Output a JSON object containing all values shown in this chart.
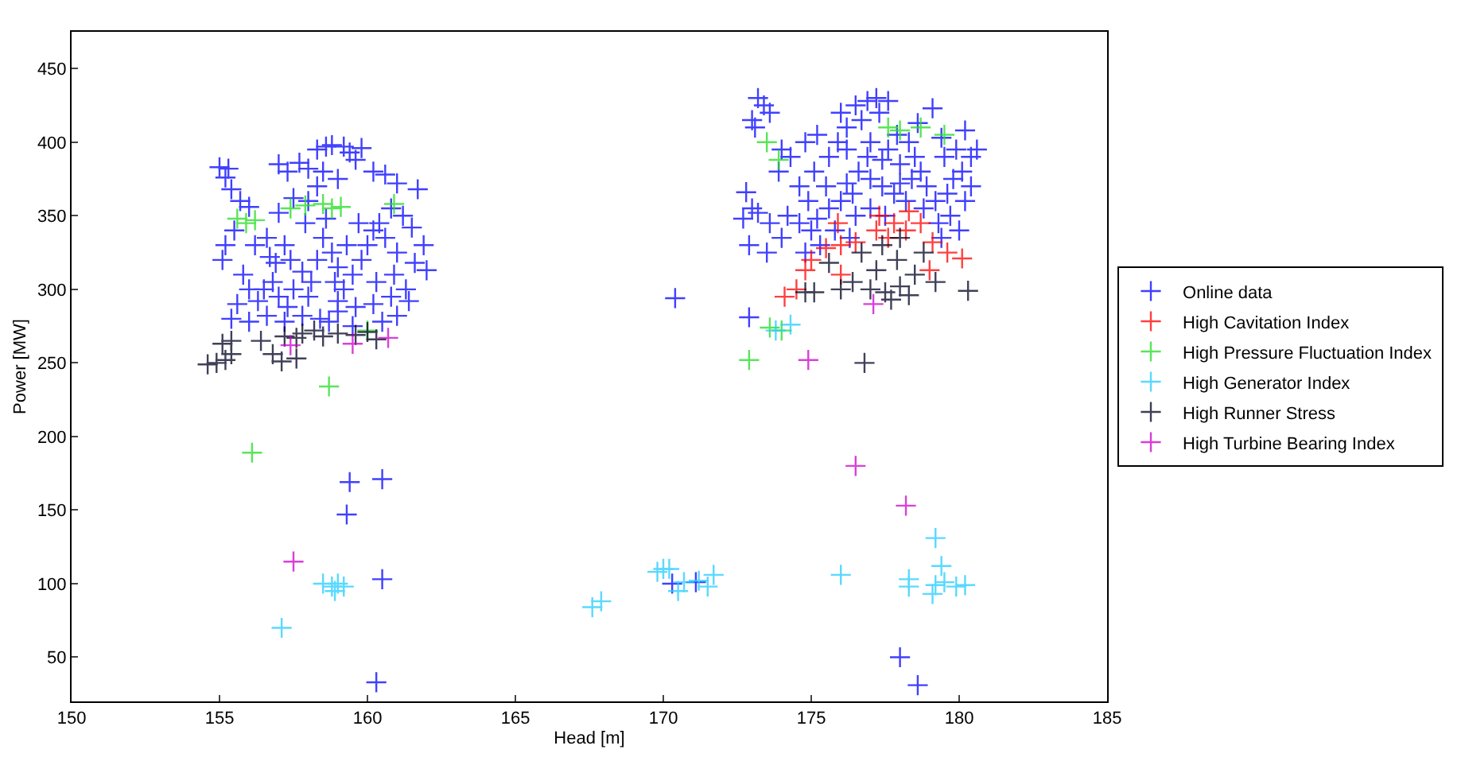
{
  "chart_data": {
    "type": "scatter",
    "xlabel": "Head [m]",
    "ylabel": "Power [MW]",
    "xlim": [
      150,
      185
    ],
    "ylim": [
      20,
      475
    ],
    "xticks": [
      150,
      155,
      160,
      165,
      170,
      175,
      180,
      185
    ],
    "yticks": [
      50,
      100,
      150,
      200,
      250,
      300,
      350,
      400,
      450
    ],
    "legend": "right",
    "marker": "cross",
    "series": [
      {
        "name": "Online data",
        "color": "#0000ff",
        "x": [
          155.0,
          155.3,
          155.2,
          155.4,
          155.7,
          156.0,
          155.5,
          155.2,
          155.1,
          156.2,
          156.6,
          156.7,
          157.2,
          157.0,
          157.3,
          157.7,
          158.0,
          158.3,
          158.6,
          158.8,
          159.2,
          159.4,
          159.8,
          159.6,
          158.5,
          159.0,
          158.3,
          158.0,
          157.5,
          157.0,
          160.2,
          160.6,
          161.0,
          161.7,
          160.8,
          161.5,
          161.9,
          162.0,
          161.6,
          161.3,
          161.0,
          160.6,
          160.2,
          160.0,
          159.8,
          159.5,
          159.2,
          159.0,
          158.8,
          158.5,
          158.3,
          158.1,
          158.0,
          157.8,
          157.5,
          157.3,
          157.0,
          156.8,
          156.5,
          156.3,
          156.0,
          155.8,
          155.6,
          155.4,
          156.0,
          156.6,
          157.2,
          157.8,
          158.4,
          159.0,
          159.6,
          160.2,
          160.8,
          161.4,
          161.0,
          160.5,
          159.5,
          158.7,
          159.3,
          159.7,
          160.4,
          161.2,
          157.9,
          158.6,
          156.9,
          157.4,
          158.9,
          160.3,
          160.9,
          159.0,
          172.7,
          173.0,
          172.8,
          173.2,
          173.0,
          173.2,
          173.4,
          173.6,
          173.1,
          174.0,
          174.3,
          173.9,
          174.6,
          174.2,
          174.6,
          175.0,
          174.0,
          173.6,
          175.2,
          175.6,
          175.5,
          175.1,
          175.6,
          176.2,
          174.8,
          175.2,
          176.0,
          176.5,
          176.9,
          177.2,
          177.6,
          177.3,
          176.7,
          176.2,
          177.0,
          177.6,
          177.9,
          178.3,
          178.5,
          178.7,
          178.9,
          179.2,
          179.6,
          179.8,
          180.1,
          180.4,
          179.9,
          179.5,
          179.1,
          178.6,
          179.4,
          180.2,
          180.6,
          180.4,
          180.2,
          179.7,
          179.3,
          178.8,
          178.2,
          177.8,
          177.4,
          177.0,
          176.6,
          176.2,
          176.0,
          176.5,
          177.0,
          177.5,
          178.0,
          178.4,
          178.0,
          177.4,
          176.9,
          176.4,
          175.8,
          176.3,
          175.3,
          174.8,
          179.4,
          180.0,
          172.9,
          173.5,
          174.9,
          175.9,
          170.4,
          172.9,
          160.3,
          160.5,
          159.4,
          160.5,
          159.3,
          178.0,
          178.6,
          170.3,
          171.1
        ],
        "values": [
          383,
          382,
          376,
          368,
          360,
          356,
          340,
          330,
          320,
          330,
          335,
          322,
          330,
          385,
          380,
          386,
          382,
          395,
          397,
          398,
          397,
          393,
          396,
          388,
          380,
          375,
          370,
          360,
          362,
          352,
          380,
          378,
          372,
          368,
          355,
          342,
          330,
          313,
          318,
          300,
          325,
          335,
          340,
          330,
          320,
          310,
          300,
          315,
          325,
          335,
          320,
          305,
          295,
          312,
          300,
          288,
          295,
          305,
          300,
          292,
          300,
          310,
          290,
          280,
          278,
          282,
          278,
          282,
          280,
          285,
          288,
          290,
          295,
          292,
          282,
          278,
          275,
          278,
          330,
          345,
          345,
          350,
          345,
          348,
          318,
          320,
          305,
          305,
          310,
          292,
          348,
          355,
          366,
          352,
          415,
          430,
          425,
          420,
          410,
          395,
          390,
          380,
          370,
          350,
          345,
          340,
          335,
          345,
          348,
          355,
          370,
          380,
          390,
          395,
          400,
          405,
          420,
          425,
          428,
          430,
          428,
          420,
          415,
          410,
          400,
          395,
          405,
          400,
          390,
          380,
          370,
          360,
          365,
          375,
          380,
          390,
          395,
          390,
          423,
          413,
          403,
          408,
          395,
          370,
          360,
          350,
          345,
          355,
          360,
          365,
          370,
          375,
          380,
          372,
          360,
          350,
          355,
          350,
          372,
          375,
          385,
          388,
          390,
          365,
          340,
          335,
          330,
          325,
          335,
          340,
          330,
          325,
          360,
          400,
          294,
          281,
          33,
          103,
          169,
          171,
          147,
          50,
          31,
          100,
          101
        ]
      },
      {
        "name": "High Cavitation Index",
        "color": "#ff0000",
        "x": [
          177.3,
          177.8,
          178.3,
          178.7,
          177.6,
          176.5,
          175.5,
          175.0,
          174.8,
          174.5,
          174.1,
          176.0,
          179.1,
          179.6,
          180.1,
          179.0,
          175.9,
          178.2,
          177.2,
          176.0
        ],
        "values": [
          350,
          345,
          353,
          345,
          335,
          332,
          328,
          320,
          313,
          300,
          295,
          330,
          332,
          325,
          321,
          313,
          345,
          340,
          340,
          310
        ]
      },
      {
        "name": "High Pressure Fluctuation Index",
        "color": "#22dd22",
        "x": [
          156.1,
          158.7,
          172.9,
          155.6,
          155.9,
          156.2,
          157.4,
          158.5,
          158.8,
          159.1,
          160.9,
          157.9,
          160.0,
          173.9,
          173.5,
          177.6,
          178.0,
          179.5,
          178.7,
          174.0,
          173.6
        ],
        "values": [
          189,
          234,
          252,
          348,
          345,
          347,
          355,
          358,
          355,
          356,
          358,
          357,
          272,
          388,
          400,
          410,
          408,
          405,
          410,
          272,
          274
        ]
      },
      {
        "name": "High Generator Index",
        "color": "#22ccff",
        "x": [
          157.1,
          158.5,
          158.8,
          159.0,
          158.9,
          159.2,
          167.6,
          167.9,
          169.8,
          170.0,
          170.2,
          170.5,
          170.7,
          171.2,
          171.5,
          171.7,
          176.0,
          178.3,
          178.3,
          179.1,
          179.2,
          179.2,
          179.4,
          179.5,
          179.9,
          180.2,
          173.8,
          174.3
        ],
        "values": [
          70,
          100,
          98,
          100,
          95,
          98,
          84,
          88,
          108,
          110,
          110,
          95,
          101,
          102,
          98,
          106,
          106,
          103,
          98,
          93,
          99,
          131,
          112,
          101,
          98,
          99,
          272,
          276
        ]
      },
      {
        "name": "High Runner Stress",
        "color": "#000022",
        "x": [
          154.6,
          154.9,
          155.2,
          155.4,
          155.1,
          155.4,
          156.4,
          157.2,
          157.8,
          158.2,
          157.1,
          157.6,
          156.8,
          159.0,
          160.0,
          159.6,
          160.3,
          158.5,
          157.6,
          175.1,
          176.0,
          176.4,
          177.0,
          177.5,
          178.0,
          177.7,
          178.3,
          179.2,
          180.3,
          177.9,
          177.4,
          178.0,
          176.7,
          175.6,
          177.2,
          178.5,
          176.8,
          174.8,
          178.8
        ],
        "values": [
          249,
          250,
          252,
          256,
          263,
          265,
          265,
          268,
          270,
          272,
          251,
          253,
          256,
          270,
          271,
          269,
          266,
          268,
          267,
          298,
          300,
          305,
          300,
          298,
          302,
          293,
          296,
          305,
          299,
          320,
          330,
          335,
          325,
          318,
          313,
          310,
          250,
          298,
          325
        ]
      },
      {
        "name": "High Turbine Bearing Index",
        "color": "#cc00cc",
        "x": [
          157.5,
          176.5,
          178.2,
          174.9,
          157.4,
          159.5,
          160.7,
          177.1
        ],
        "values": [
          115,
          180,
          153,
          252,
          262,
          263,
          267,
          290
        ]
      }
    ]
  }
}
